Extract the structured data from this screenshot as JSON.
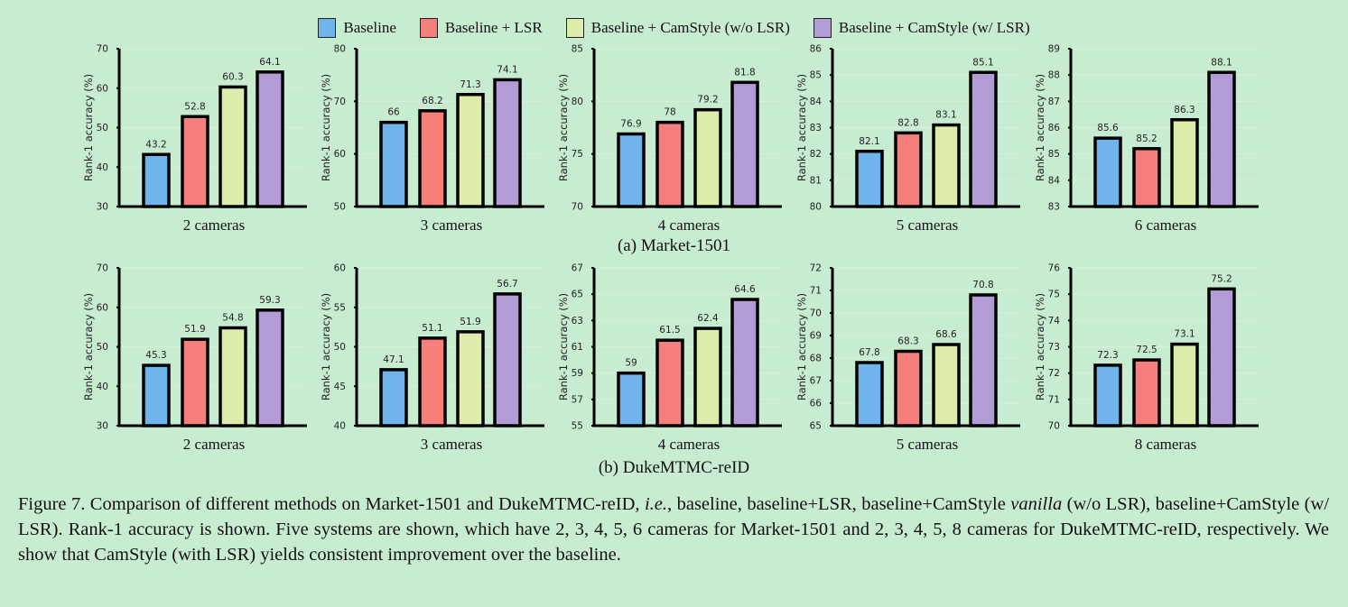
{
  "legend": [
    {
      "label": "Baseline",
      "color": "#6fb4ec"
    },
    {
      "label": "Baseline + LSR",
      "color": "#f47f7c"
    },
    {
      "label": "Baseline + CamStyle (w/o LSR)",
      "color": "#dcedab"
    },
    {
      "label": "Baseline + CamStyle (w/ LSR)",
      "color": "#b39bd6"
    }
  ],
  "subcaptions": {
    "a": "(a) Market-1501",
    "b": "(b) DukeMTMC-reID"
  },
  "caption": {
    "part1": "Figure 7. Comparison of different methods on Market-1501 and DukeMTMC-reID, ",
    "ie": "i.e.",
    "part2": ", baseline, baseline+LSR, baseline+CamStyle ",
    "vanilla": "vanilla",
    "part3": " (w/o LSR), baseline+CamStyle (w/ LSR). Rank-1 accuracy is shown.  Five systems are shown, which have 2, 3, 4, 5, 6 cameras for Market-1501 and 2, 3, 4, 5, 8 cameras for DukeMTMC-reID, respectively. We show that CamStyle (with LSR) yields consistent improvement over the baseline."
  },
  "chart_data": [
    {
      "type": "bar",
      "dataset": "Market-1501",
      "xlabel": "2 cameras",
      "ylabel": "Rank-1 accuracy (%)",
      "ylim": [
        30,
        70
      ],
      "yticks": [
        30,
        40,
        50,
        60,
        70
      ],
      "categories": [
        "Baseline",
        "Baseline + LSR",
        "Baseline + CamStyle (w/o LSR)",
        "Baseline + CamStyle (w/ LSR)"
      ],
      "values": [
        43.2,
        52.8,
        60.3,
        64.1
      ],
      "labels": [
        "43.2",
        "52.8",
        "60.3",
        "64.1"
      ]
    },
    {
      "type": "bar",
      "dataset": "Market-1501",
      "xlabel": "3 cameras",
      "ylabel": "Rank-1 accuracy (%)",
      "ylim": [
        50,
        80
      ],
      "yticks": [
        50,
        60,
        70,
        80
      ],
      "categories": [
        "Baseline",
        "Baseline + LSR",
        "Baseline + CamStyle (w/o LSR)",
        "Baseline + CamStyle (w/ LSR)"
      ],
      "values": [
        66,
        68.2,
        71.3,
        74.1
      ],
      "labels": [
        "66",
        "68.2",
        "71.3",
        "74.1"
      ]
    },
    {
      "type": "bar",
      "dataset": "Market-1501",
      "xlabel": "4 cameras",
      "ylabel": "Rank-1 accuracy (%)",
      "ylim": [
        70,
        85
      ],
      "yticks": [
        70,
        75,
        80,
        85
      ],
      "categories": [
        "Baseline",
        "Baseline + LSR",
        "Baseline + CamStyle (w/o LSR)",
        "Baseline + CamStyle (w/ LSR)"
      ],
      "values": [
        76.9,
        78,
        79.2,
        81.8
      ],
      "labels": [
        "76.9",
        "78",
        "79.2",
        "81.8"
      ]
    },
    {
      "type": "bar",
      "dataset": "Market-1501",
      "xlabel": "5 cameras",
      "ylabel": "Rank-1 accuracy (%)",
      "ylim": [
        80,
        86
      ],
      "yticks": [
        80,
        81,
        82,
        83,
        84,
        85,
        86
      ],
      "categories": [
        "Baseline",
        "Baseline + LSR",
        "Baseline + CamStyle (w/o LSR)",
        "Baseline + CamStyle (w/ LSR)"
      ],
      "values": [
        82.1,
        82.8,
        83.1,
        85.1
      ],
      "labels": [
        "82.1",
        "82.8",
        "83.1",
        "85.1"
      ]
    },
    {
      "type": "bar",
      "dataset": "Market-1501",
      "xlabel": "6 cameras",
      "ylabel": "Rank-1 accuracy (%)",
      "ylim": [
        83,
        89
      ],
      "yticks": [
        83,
        84,
        85,
        86,
        87,
        88,
        89
      ],
      "categories": [
        "Baseline",
        "Baseline + LSR",
        "Baseline + CamStyle (w/o LSR)",
        "Baseline + CamStyle (w/ LSR)"
      ],
      "values": [
        85.6,
        85.2,
        86.3,
        88.1
      ],
      "labels": [
        "85.6",
        "85.2",
        "86.3",
        "88.1"
      ]
    },
    {
      "type": "bar",
      "dataset": "DukeMTMC-reID",
      "xlabel": "2 cameras",
      "ylabel": "Rank-1 accuracy (%)",
      "ylim": [
        30,
        70
      ],
      "yticks": [
        30,
        40,
        50,
        60,
        70
      ],
      "categories": [
        "Baseline",
        "Baseline + LSR",
        "Baseline + CamStyle (w/o LSR)",
        "Baseline + CamStyle (w/ LSR)"
      ],
      "values": [
        45.3,
        51.9,
        54.8,
        59.3
      ],
      "labels": [
        "45.3",
        "51.9",
        "54.8",
        "59.3"
      ]
    },
    {
      "type": "bar",
      "dataset": "DukeMTMC-reID",
      "xlabel": "3 cameras",
      "ylabel": "Rank-1 accuracy (%)",
      "ylim": [
        40,
        60
      ],
      "yticks": [
        40,
        45,
        50,
        55,
        60
      ],
      "categories": [
        "Baseline",
        "Baseline + LSR",
        "Baseline + CamStyle (w/o LSR)",
        "Baseline + CamStyle (w/ LSR)"
      ],
      "values": [
        47.1,
        51.1,
        51.9,
        56.7
      ],
      "labels": [
        "47.1",
        "51.1",
        "51.9",
        "56.7"
      ]
    },
    {
      "type": "bar",
      "dataset": "DukeMTMC-reID",
      "xlabel": "4 cameras",
      "ylabel": "Rank-1 accuracy (%)",
      "ylim": [
        55,
        67
      ],
      "yticks": [
        55,
        57,
        59,
        61,
        63,
        65,
        67
      ],
      "categories": [
        "Baseline",
        "Baseline + LSR",
        "Baseline + CamStyle (w/o LSR)",
        "Baseline + CamStyle (w/ LSR)"
      ],
      "values": [
        59,
        61.5,
        62.4,
        64.6
      ],
      "labels": [
        "59",
        "61.5",
        "62.4",
        "64.6"
      ]
    },
    {
      "type": "bar",
      "dataset": "DukeMTMC-reID",
      "xlabel": "5 cameras",
      "ylabel": "Rank-1 accuracy (%)",
      "ylim": [
        65,
        72
      ],
      "yticks": [
        65,
        66,
        67,
        68,
        69,
        70,
        71,
        72
      ],
      "categories": [
        "Baseline",
        "Baseline + LSR",
        "Baseline + CamStyle (w/o LSR)",
        "Baseline + CamStyle (w/ LSR)"
      ],
      "values": [
        67.8,
        68.3,
        68.6,
        70.8
      ],
      "labels": [
        "67.8",
        "68.3",
        "68.6",
        "70.8"
      ]
    },
    {
      "type": "bar",
      "dataset": "DukeMTMC-reID",
      "xlabel": "8 cameras",
      "ylabel": "Rank-1 accuracy (%)",
      "ylim": [
        70,
        76
      ],
      "yticks": [
        70,
        71,
        72,
        73,
        74,
        75,
        76
      ],
      "categories": [
        "Baseline",
        "Baseline + LSR",
        "Baseline + CamStyle (w/o LSR)",
        "Baseline + CamStyle (w/ LSR)"
      ],
      "values": [
        72.3,
        72.5,
        73.1,
        75.2
      ],
      "labels": [
        "72.3",
        "72.5",
        "73.1",
        "75.2"
      ]
    }
  ]
}
